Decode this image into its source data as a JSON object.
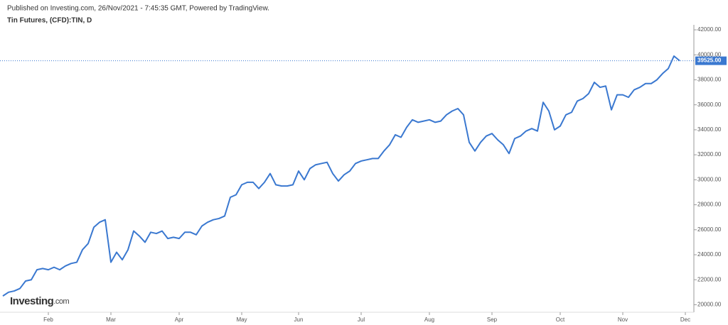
{
  "header": "Published on Investing.com, 26/Nov/2021 - 7:45:35 GMT, Powered by TradingView.",
  "logo": {
    "name": "Investing",
    "suffix": ".com"
  },
  "chart_data": {
    "type": "line",
    "title": "Tin Futures, (CFD):TIN, D",
    "categories": [
      null,
      null,
      null,
      null,
      null,
      null,
      null,
      null,
      "Feb",
      null,
      null,
      null,
      null,
      null,
      null,
      null,
      null,
      null,
      null,
      "Mar",
      null,
      null,
      null,
      null,
      null,
      null,
      null,
      null,
      null,
      null,
      null,
      "Apr",
      null,
      null,
      null,
      null,
      null,
      null,
      null,
      null,
      null,
      null,
      "May",
      null,
      null,
      null,
      null,
      null,
      null,
      null,
      null,
      null,
      "Jun",
      null,
      null,
      null,
      null,
      null,
      null,
      null,
      null,
      null,
      null,
      "Jul",
      null,
      null,
      null,
      null,
      null,
      null,
      null,
      null,
      null,
      null,
      null,
      "Aug",
      null,
      null,
      null,
      null,
      null,
      null,
      null,
      null,
      null,
      null,
      "Sep",
      null,
      null,
      null,
      null,
      null,
      null,
      null,
      null,
      null,
      null,
      null,
      "Oct",
      null,
      null,
      null,
      null,
      null,
      null,
      null,
      null,
      null,
      null,
      "Nov",
      null,
      null,
      null,
      null,
      null,
      null,
      null,
      null,
      null,
      null,
      "Dec",
      null
    ],
    "series": [
      {
        "name": "TIN",
        "color": "#3a78d0",
        "values": [
          20700,
          21000,
          21100,
          21300,
          21900,
          22000,
          22800,
          22900,
          22800,
          23000,
          22800,
          23100,
          23300,
          23400,
          24400,
          24900,
          26200,
          26600,
          26800,
          23400,
          24200,
          23600,
          24400,
          25900,
          25500,
          25000,
          25800,
          25700,
          25900,
          25300,
          25400,
          25300,
          25800,
          25800,
          25600,
          26300,
          26600,
          26800,
          26900,
          27100,
          28600,
          28800,
          29600,
          29800,
          29800,
          29300,
          29800,
          30500,
          29600,
          29500,
          29500,
          29600,
          30700,
          30000,
          30900,
          31200,
          31300,
          31400,
          30500,
          29900,
          30400,
          30700,
          31300,
          31500,
          31600,
          31700,
          31700,
          32300,
          32800,
          33600,
          33400,
          34200,
          34800,
          34600,
          34700,
          34800,
          34600,
          34700,
          35200,
          35500,
          35700,
          35200,
          33000,
          32300,
          33000,
          33500,
          33700,
          33200,
          32800,
          32100,
          33300,
          33500,
          33900,
          34100,
          33900,
          36200,
          35500,
          34000,
          34300,
          35200,
          35400,
          36300,
          36500,
          36900,
          37800,
          37400,
          37500,
          35600,
          36800,
          36800,
          36600,
          37200,
          37400,
          37700,
          37700,
          38000,
          38500,
          38900,
          39900,
          39525,
          null,
          null
        ]
      }
    ],
    "ylim": [
      19400,
      42400
    ],
    "yticks": [
      {
        "value": 20000,
        "label": "20000.00"
      },
      {
        "value": 22000,
        "label": "22000.00"
      },
      {
        "value": 24000,
        "label": "24000.00"
      },
      {
        "value": 26000,
        "label": "26000.00"
      },
      {
        "value": 28000,
        "label": "28000.00"
      },
      {
        "value": 30000,
        "label": "30000.00"
      },
      {
        "value": 32000,
        "label": "32000.00"
      },
      {
        "value": 34000,
        "label": "34000.00"
      },
      {
        "value": 36000,
        "label": "36000.00"
      },
      {
        "value": 38000,
        "label": "38000.00"
      },
      {
        "value": 40000,
        "label": "40000.00"
      },
      {
        "value": 42000,
        "label": "42000.00"
      }
    ],
    "last_price": {
      "value": 39525,
      "label": "39525.00"
    },
    "grid": false
  }
}
